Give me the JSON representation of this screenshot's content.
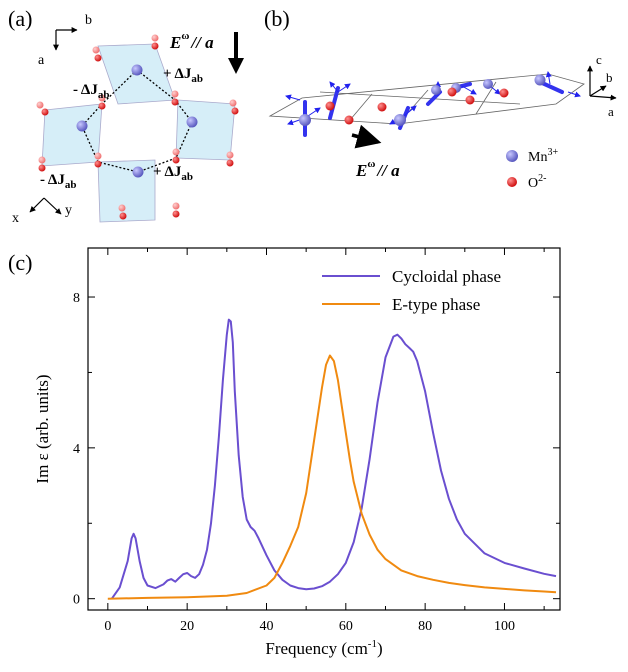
{
  "panels": {
    "a": {
      "label": "(a)",
      "axis_b": "b",
      "axis_a": "a",
      "axis_x": "x",
      "axis_y": "y",
      "field_prefix": "E",
      "field_sup": "ω",
      "field_suffix": "// a",
      "couplings": [
        {
          "sign": "- ΔJ",
          "sub": "ab"
        },
        {
          "sign": "+ ΔJ",
          "sub": "ab"
        },
        {
          "sign": "- ΔJ",
          "sub": "ab"
        },
        {
          "sign": "+ ΔJ",
          "sub": "ab"
        }
      ]
    },
    "b": {
      "label": "(b)",
      "axis_c": "c",
      "axis_b": "b",
      "axis_a": "a",
      "field_prefix": "E",
      "field_sup": "ω",
      "field_suffix": "// a",
      "legend": [
        {
          "name": "Mn",
          "sup": "3+",
          "color": "#7070d0"
        },
        {
          "name": "O",
          "sup": "2-",
          "color": "#e02020"
        }
      ]
    },
    "c": {
      "label": "(c)"
    }
  },
  "chart_data": {
    "type": "line",
    "xlabel": "Frequency (cm",
    "xlabel_sup": "-1",
    "xlabel_end": ")",
    "ylabel": "Im ε (arb. units)",
    "xlim": [
      -5,
      114
    ],
    "ylim": [
      -0.3,
      9.3
    ],
    "xticks": [
      0,
      20,
      40,
      60,
      80,
      100
    ],
    "yticks": [
      0,
      4,
      8
    ],
    "series": [
      {
        "name": "Cycloidal phase",
        "color": "#6a4fd0",
        "x": [
          1,
          3,
          5,
          6,
          6.5,
          7,
          8,
          9,
          10,
          12,
          14,
          15,
          16,
          17,
          18,
          19,
          20,
          21,
          22,
          23,
          24,
          25,
          26,
          27,
          28,
          29,
          30,
          30.5,
          31,
          31.5,
          32,
          33,
          34,
          35,
          36,
          37,
          38,
          40,
          42,
          44,
          46,
          48,
          50,
          52,
          54,
          56,
          58,
          60,
          62,
          64,
          66,
          68,
          70,
          72,
          73,
          74,
          75,
          76,
          77,
          78,
          80,
          82,
          84,
          86,
          88,
          90,
          95,
          100,
          105,
          110,
          113
        ],
        "y": [
          0,
          0.3,
          1.0,
          1.6,
          1.72,
          1.6,
          1.0,
          0.55,
          0.35,
          0.28,
          0.38,
          0.48,
          0.52,
          0.45,
          0.55,
          0.65,
          0.68,
          0.6,
          0.55,
          0.65,
          0.9,
          1.3,
          2.0,
          3.0,
          4.3,
          5.8,
          7.0,
          7.4,
          7.35,
          6.8,
          5.5,
          3.8,
          2.7,
          2.1,
          1.9,
          1.8,
          1.6,
          1.15,
          0.75,
          0.5,
          0.35,
          0.28,
          0.25,
          0.27,
          0.33,
          0.45,
          0.65,
          0.95,
          1.5,
          2.4,
          3.7,
          5.2,
          6.4,
          6.95,
          7.0,
          6.9,
          6.75,
          6.65,
          6.55,
          6.3,
          5.5,
          4.4,
          3.4,
          2.65,
          2.1,
          1.72,
          1.2,
          0.95,
          0.8,
          0.66,
          0.6
        ]
      },
      {
        "name": "E-type phase",
        "color": "#f08a10",
        "x": [
          0,
          10,
          20,
          30,
          35,
          40,
          42,
          44,
          46,
          48,
          50,
          52,
          54,
          55,
          56,
          57,
          58,
          59,
          60,
          61,
          62,
          64,
          66,
          68,
          70,
          74,
          78,
          82,
          86,
          90,
          95,
          100,
          105,
          110,
          113
        ],
        "y": [
          0,
          0.02,
          0.04,
          0.08,
          0.15,
          0.35,
          0.55,
          0.95,
          1.4,
          1.9,
          2.8,
          4.2,
          5.6,
          6.2,
          6.45,
          6.3,
          5.8,
          5.1,
          4.4,
          3.7,
          3.1,
          2.25,
          1.7,
          1.3,
          1.05,
          0.75,
          0.6,
          0.5,
          0.42,
          0.36,
          0.3,
          0.26,
          0.22,
          0.19,
          0.17
        ]
      }
    ],
    "legend_position": "top-right"
  }
}
